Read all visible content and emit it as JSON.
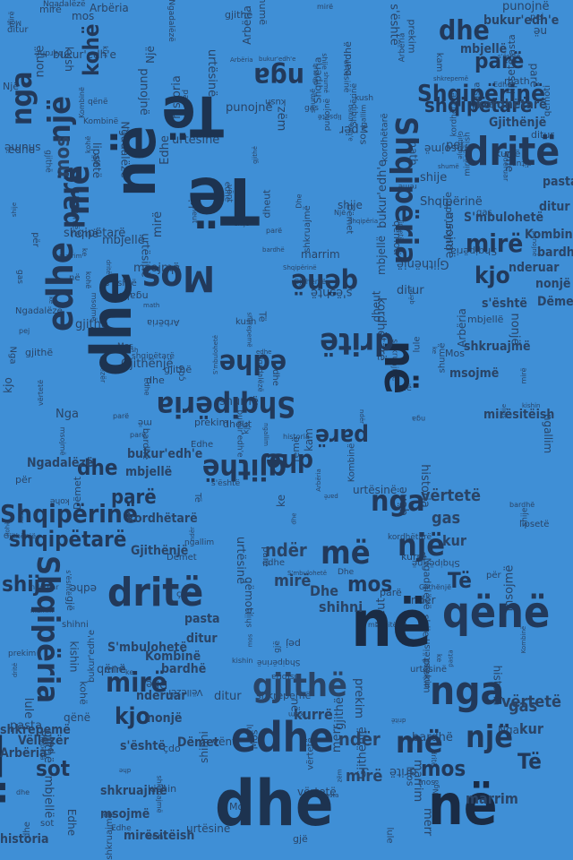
{
  "colors": {
    "background": "#3f8fd6",
    "text": "#1d3350"
  },
  "words": [
    "Të",
    "në",
    "dhe",
    "nga",
    "më",
    "një",
    "gjithë",
    "mos",
    "edhe",
    "dritë",
    "qënë",
    "parë",
    "kohë",
    "mbjellë",
    "Shqipëria",
    "Shqipërinë",
    "shqipëtarë",
    "Gjithënjë",
    "kordhëtarë",
    "bukur'edh'e",
    "mirë",
    "kjo",
    "Kombinë",
    "bardhë",
    "nderuar",
    "nonjë",
    "s'është",
    "urtësinë",
    "shkruajmë",
    "msojmë",
    "mirësitëish",
    "Vëllezër",
    "Dëmet",
    "sot",
    "ditur",
    "pasta",
    "S'mbulohetë",
    "shumë",
    "për",
    "pej",
    "punojnë",
    "vërtetë",
    "gas",
    "kur",
    "merr",
    "ndër",
    "kush",
    "kurrë",
    "jetë",
    "math",
    "mirë",
    "Edhe",
    "Dhe",
    "shihni",
    "shije",
    "vënt",
    "kishin",
    "remë",
    "ngallim",
    "lipsetë",
    "qëmoti",
    "prekim",
    "marrim",
    "zëm",
    "Ngadalëzë",
    "historia",
    "shkrepemë",
    "Arbëria",
    "dheut",
    "kam",
    "gjë",
    "lule",
    "ke",
    "çdo",
    "Nga",
    "Një",
    "Mos"
  ]
}
